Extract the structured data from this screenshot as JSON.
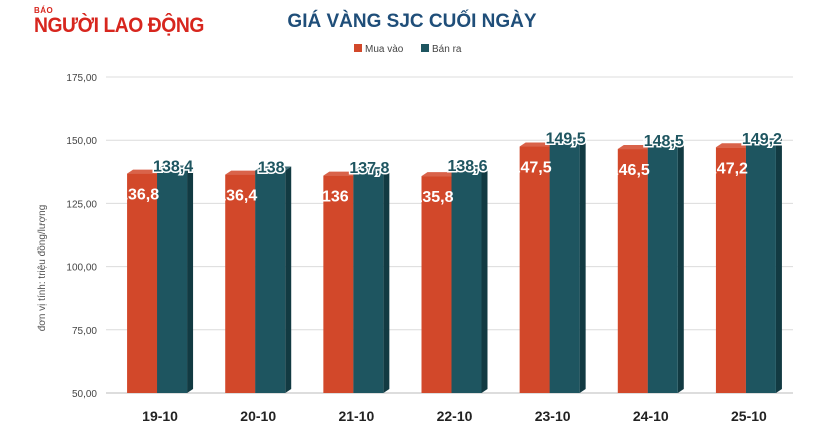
{
  "brand": {
    "prefix": "BÁO",
    "name": "NGƯỜI LAO ĐỘNG",
    "color": "#d7261e"
  },
  "chart_data": {
    "type": "bar",
    "title": "GIÁ VÀNG SJC CUỐI NGÀY",
    "ylabel": "đơn vị tính: triệu đồng/lượng",
    "xlabel": "",
    "categories": [
      "19-10",
      "20-10",
      "21-10",
      "22-10",
      "23-10",
      "24-10",
      "25-10"
    ],
    "series": [
      {
        "name": "Mua vào",
        "color": "#d2482a",
        "values": [
          136.8,
          136.4,
          136,
          135.8,
          147.5,
          146.5,
          147.2
        ],
        "labels": [
          "136,8",
          "136,4",
          "136",
          "135,8",
          "147,5",
          "146,5",
          "147,2"
        ]
      },
      {
        "name": "Bán ra",
        "color": "#1e5560",
        "values": [
          138.4,
          138,
          137.8,
          138.6,
          149.5,
          148.5,
          149.2
        ],
        "labels": [
          "138,4",
          "138",
          "137,8",
          "138,6",
          "149,5",
          "148,5",
          "149,2"
        ]
      }
    ],
    "ylim": [
      50,
      175
    ],
    "yticks": [
      50,
      75,
      100,
      125,
      150,
      175
    ],
    "ytick_labels": [
      "50,00",
      "75,00",
      "100,00",
      "125,00",
      "150,00",
      "175,00"
    ],
    "grid": true,
    "legend": "top-center"
  }
}
